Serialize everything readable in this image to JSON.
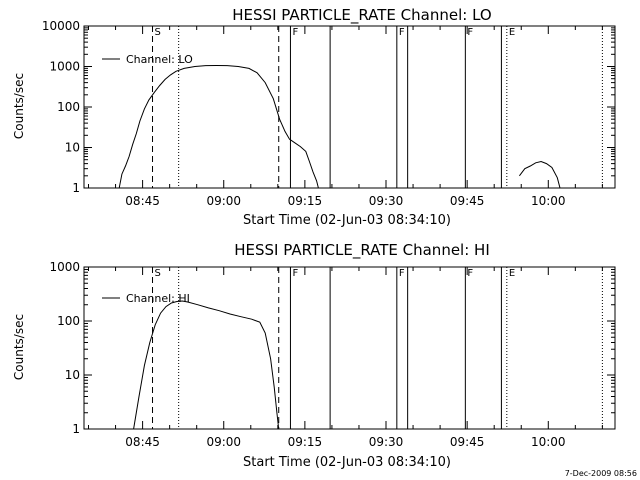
{
  "chart_data": [
    {
      "type": "line",
      "title": "HESSI PARTICLE_RATE Channel: LO",
      "xlabel": "Start Time (02-Jun-03 08:34:10)",
      "ylabel": "Counts/sec",
      "y_scale": "log",
      "ylim": [
        1,
        10000
      ],
      "xlim": [
        "08:34:10",
        "10:12:20"
      ],
      "x_ticks": [
        "08:45",
        "09:00",
        "09:15",
        "09:30",
        "09:45",
        "10:00"
      ],
      "y_ticks": [
        "1",
        "10",
        "100",
        "1000",
        "10000"
      ],
      "grid": false,
      "legend": {
        "position": "top-left",
        "entries": [
          "Channel: LO"
        ]
      },
      "series": [
        {
          "name": "Channel: LO",
          "segments": [
            {
              "x": [
                "08:40:40",
                "08:41:10",
                "08:41:50",
                "08:42:30",
                "08:43:10",
                "08:43:50",
                "08:44:30",
                "08:45:20",
                "08:46:10",
                "08:47:10",
                "08:48:10",
                "08:49:10",
                "08:50:10",
                "08:51:10",
                "08:52:40",
                "08:54:40",
                "08:56:40",
                "08:58:40",
                "09:00:40",
                "09:02:40",
                "09:04:40",
                "09:06:10",
                "09:07:40",
                "09:09:10",
                "09:10:20",
                "09:11:20",
                "09:12:10",
                "09:13:10",
                "09:14:10",
                "09:15:10",
                "09:15:50",
                "09:16:30",
                "09:17:10",
                "09:17:30"
              ],
              "y": [
                1,
                2.2,
                3.5,
                6,
                12,
                22,
                45,
                90,
                150,
                230,
                340,
                480,
                620,
                760,
                900,
                1000,
                1050,
                1060,
                1050,
                1000,
                900,
                700,
                400,
                160,
                50,
                25,
                16,
                13,
                10.5,
                8,
                4.5,
                2.5,
                1.5,
                1
              ]
            },
            {
              "x": [
                "09:54:40",
                "09:55:40",
                "09:56:40",
                "09:57:40",
                "09:58:40",
                "09:59:40",
                "10:00:40",
                "10:01:40",
                "10:02:10"
              ],
              "y": [
                2,
                3,
                3.5,
                4.2,
                4.5,
                4,
                3.2,
                1.8,
                1
              ]
            }
          ]
        }
      ],
      "markers": [
        {
          "type": "dashed",
          "label": "S",
          "x": "08:46:50"
        },
        {
          "type": "dotted",
          "label": "",
          "x": "08:51:40"
        },
        {
          "type": "dashed",
          "label": "",
          "x": "09:10:10"
        },
        {
          "type": "solid",
          "label": "F",
          "x": "09:12:20"
        },
        {
          "type": "solid",
          "label": "",
          "x": "09:19:40"
        },
        {
          "type": "solid",
          "label": "F",
          "x": "09:32:00"
        },
        {
          "type": "solid",
          "label": "",
          "x": "09:34:00"
        },
        {
          "type": "solid",
          "label": "F",
          "x": "09:44:40"
        },
        {
          "type": "solid",
          "label": "",
          "x": "09:51:20"
        },
        {
          "type": "dotted",
          "label": "E",
          "x": "09:52:20"
        },
        {
          "type": "dotted",
          "label": "",
          "x": "10:10:00"
        }
      ]
    },
    {
      "type": "line",
      "title": "HESSI PARTICLE_RATE Channel: HI",
      "xlabel": "Start Time (02-Jun-03 08:34:10)",
      "ylabel": "Counts/sec",
      "y_scale": "log",
      "ylim": [
        1,
        1000
      ],
      "xlim": [
        "08:34:10",
        "10:12:20"
      ],
      "x_ticks": [
        "08:45",
        "09:00",
        "09:15",
        "09:30",
        "09:45",
        "10:00"
      ],
      "y_ticks": [
        "1",
        "10",
        "100",
        "1000"
      ],
      "grid": false,
      "legend": {
        "position": "top-left",
        "entries": [
          "Channel: HI"
        ]
      },
      "series": [
        {
          "name": "Channel: HI",
          "segments": [
            {
              "x": [
                "08:43:20",
                "08:44:20",
                "08:45:20",
                "08:46:20",
                "08:47:20",
                "08:48:20",
                "08:49:20",
                "08:50:20",
                "08:51:20",
                "08:52:20",
                "08:53:20",
                "08:55:10",
                "08:57:10",
                "08:59:10",
                "09:01:10",
                "09:03:10",
                "09:05:10",
                "09:06:40",
                "09:07:40",
                "09:08:40",
                "09:09:20",
                "09:09:50",
                "09:10:10"
              ],
              "y": [
                1,
                4,
                15,
                40,
                85,
                140,
                185,
                215,
                230,
                235,
                225,
                200,
                175,
                155,
                135,
                120,
                108,
                95,
                60,
                20,
                6,
                2,
                1
              ]
            }
          ]
        }
      ],
      "markers": [
        {
          "type": "dashed",
          "label": "S",
          "x": "08:46:50"
        },
        {
          "type": "dotted",
          "label": "",
          "x": "08:51:40"
        },
        {
          "type": "dashed",
          "label": "",
          "x": "09:10:10"
        },
        {
          "type": "solid",
          "label": "F",
          "x": "09:12:20"
        },
        {
          "type": "solid",
          "label": "",
          "x": "09:19:40"
        },
        {
          "type": "solid",
          "label": "F",
          "x": "09:32:00"
        },
        {
          "type": "solid",
          "label": "",
          "x": "09:34:00"
        },
        {
          "type": "solid",
          "label": "F",
          "x": "09:44:40"
        },
        {
          "type": "solid",
          "label": "",
          "x": "09:51:20"
        },
        {
          "type": "dotted",
          "label": "E",
          "x": "09:52:20"
        },
        {
          "type": "dotted",
          "label": "",
          "x": "10:10:00"
        }
      ]
    }
  ],
  "footer": {
    "timestamp": "7-Dec-2009 08:56"
  }
}
